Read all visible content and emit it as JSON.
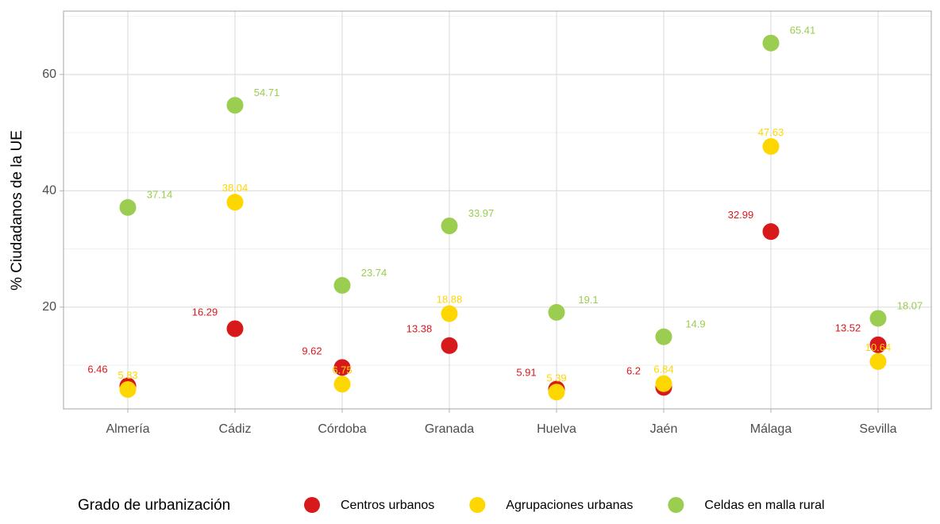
{
  "chart_data": {
    "type": "dot",
    "y_label": "% Ciudadanos de la UE",
    "categories": [
      "Almería",
      "Cádiz",
      "Córdoba",
      "Granada",
      "Huelva",
      "Jaén",
      "Málaga",
      "Sevilla"
    ],
    "ylim": [
      2.5,
      70.9
    ],
    "yticks": [
      20,
      40,
      60
    ],
    "y_minor_ticks": [
      10,
      30,
      50,
      70
    ],
    "grid": true,
    "legend_title": "Grado de urbanización",
    "legend_position": "bottom",
    "series": [
      {
        "name": "Centros urbanos",
        "color": "#d7191c",
        "values": [
          6.46,
          16.29,
          9.62,
          13.38,
          5.91,
          6.2,
          32.99,
          13.52
        ]
      },
      {
        "name": "Agrupaciones urbanas",
        "color": "#ffd700",
        "values": [
          5.83,
          38.04,
          6.75,
          18.88,
          5.39,
          6.84,
          47.63,
          10.64
        ]
      },
      {
        "name": "Celdas en malla rural",
        "color": "#9acd50",
        "values": [
          37.14,
          54.71,
          23.74,
          33.97,
          19.1,
          14.9,
          65.41,
          18.07
        ]
      }
    ]
  }
}
